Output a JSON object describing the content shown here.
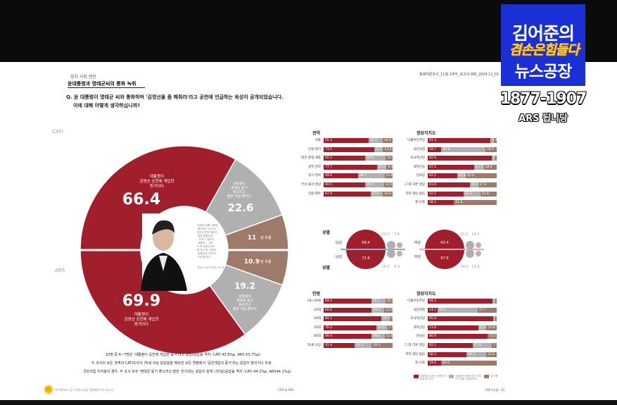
{
  "overlay": {
    "logo_line1": "김어준의",
    "logo_line2": "겸손은힘들다",
    "logo_line3": "뉴스공장",
    "phone": "1877-1907",
    "ars": "ARS 됩니당"
  },
  "report": {
    "section": "정치 사회 현안",
    "title": "윤대통령과 명태균씨의 통화 녹취",
    "question_line1": "Q. 윤 대통령이 명태균 씨와 통화하며 '김영선을 좀 해줘라'라고 공천에 언급하는 육성이 공개되었습니다.",
    "question_line2": "이에 대해 어떻게 생각하십니까?",
    "header_right": "정례여론조사_11월 1주차_보고서   WR_2024 11_01",
    "cati_label": "CATI",
    "ars_label": "ARS",
    "footnote_1": "10명 중 6~7명은 '대통령이 공천에 개입한 증거'라고 응답(응답률 격차: CATI 43.8%p, ARS 50.7%p)",
    "footnote_2": "두 조사의 모든 권역과 CATI조사의 70세 이상 응답층을 제외한 모든 연령에서 '공천개입의 증거'라는 응답이 많이거나 우세",
    "footnote_3": "국민의힘 지지층의 경우, 두 조사 모두 '명태균 등기 좋으라고 말한 것'이라는 응답이 높게 나타남(응답률 격차: CATI 44.2%p, ARS44.1%p)",
    "page_footer_left": "㈜ 여론조사 꽃 | 여론조사꽃 정례여론조사 보고서",
    "page_footer_center": "CATI & ARS",
    "page_footer_right": "여론조사꽃 · 21",
    "photo_quote": "\"김영선이를 너한테 좋으라고 내가 김영선이 번만 해주라 말은 했었는데... 그게 그 정도의 내용이... 그래도 또 김영선이가 뭐 자기 뭐 그렇게 잘했는데 그냥 여기서 좀 보다... 그래도 좀 잘해놨데\"",
    "photo_caption": "명태균 씨와의 통화 녹취 중"
  },
  "chart_data": [
    {
      "type": "pie",
      "title": "",
      "groups": [
        {
          "name": "CATI",
          "slices": [
            {
              "label": "대통령이 김영선 공천에 개입한 증거이다",
              "value": 66.4,
              "color": "#a11f2c"
            },
            {
              "label": "대통령이 명태균 듣기 좋으라고 말한 것일 뿐이다",
              "value": 22.6,
              "color": "#b0b0b0"
            },
            {
              "label": "잘 모름",
              "value": 11.0,
              "color": "#9d7a6a"
            }
          ]
        },
        {
          "name": "ARS",
          "slices": [
            {
              "label": "대통령이 김영선 공천에 개입한 증거이다",
              "value": 69.9,
              "color": "#a11f2c"
            },
            {
              "label": "대통령이 명태균 듣기 좋으라고 말한 것일 뿐이다",
              "value": 19.2,
              "color": "#b0b0b0"
            },
            {
              "label": "잘 모름",
              "value": 10.9,
              "color": "#9d7a6a"
            }
          ]
        }
      ],
      "label_short": {
        "yes": "대통령이\n김영선 공천에 개입한\n증거이다",
        "no": "대통령이\n명태균 듣기\n좋으라고\n말한 것일 뿐이다",
        "dk": "잘 모름"
      }
    },
    {
      "type": "bar",
      "stacked": true,
      "title": "권역",
      "categories": [
        "서울",
        "인천·경기",
        "대전·충청·세종",
        "광주·전라",
        "대구·경북",
        "부산·울산·경남",
        "강원·제주"
      ],
      "series": [
        {
          "values": [
            65.3,
            73.1,
            60.3,
            77.7,
            49.6,
            60.5,
            67.9
          ]
        },
        {
          "values": [
            20.2,
            13.1,
            29.6,
            13.5,
            38.7,
            26.9,
            17.6
          ]
        },
        {
          "values": [
            14.5,
            13.8,
            10.2,
            9.1,
            11.6,
            12.5,
            14.6
          ]
        }
      ]
    },
    {
      "type": "bar",
      "stacked": true,
      "title": "정당지지도",
      "categories": [
        "더불어민주당",
        "국민의힘",
        "조국혁신당",
        "개혁신당",
        "진보당",
        "그 외 다른 정당",
        "지지 정당 없음",
        "잘 모름"
      ],
      "series": [
        {
          "values": [
            91.3,
            19.7,
            92.6,
            67.5,
            42.5,
            61.6,
            52.5,
            38.2
          ]
        },
        {
          "values": [
            4.4,
            63.9,
            5.8,
            13.7,
            12.5,
            11.5,
            23.7,
            0
          ]
        },
        {
          "values": [
            4.3,
            16.5,
            1.6,
            18.8,
            45.0,
            27.0,
            23.8,
            61.8
          ]
        }
      ]
    },
    {
      "type": "pie",
      "title": "성별",
      "groups": [
        {
          "name": "남성 CATI",
          "values": [
            69.4,
            23.2,
            7.4
          ]
        },
        {
          "name": "남성 ARS",
          "values": [
            71.9,
            19.2,
            8.9
          ]
        },
        {
          "name": "여성 CATI",
          "values": [
            63.4,
            22.1,
            14.5
          ]
        },
        {
          "name": "여성 ARS",
          "values": [
            67.9,
            19.3,
            12.8
          ]
        }
      ],
      "labels": {
        "male": "남성",
        "female": "여성"
      }
    },
    {
      "type": "bar",
      "stacked": true,
      "title": "연령",
      "categories": [
        "18~29세",
        "30대",
        "40대",
        "50대",
        "60대",
        "70세 이상"
      ],
      "series": [
        {
          "values": [
            69.2,
            69.6,
            84.1,
            76.5,
            69.4,
            45.4
          ]
        },
        {
          "values": [
            20.7,
            18.4,
            11.9,
            16.0,
            19.0,
            24.3
          ]
        },
        {
          "values": [
            10.1,
            12.0,
            4.0,
            7.5,
            11.6,
            30.3
          ]
        }
      ]
    },
    {
      "type": "bar",
      "stacked": true,
      "title": "정당지지도",
      "categories": [
        "더불어민주당",
        "국민의힘",
        "조국혁신당",
        "개혁신당",
        "진보당",
        "그 외 다른 정당",
        "지지 정당 없음",
        "잘 모름"
      ],
      "series": [
        {
          "values": [
            94.2,
            14.1,
            95.0,
            73.4,
            86.9,
            65.1,
            56.3,
            19.4
          ]
        },
        {
          "values": [
            3.3,
            58.2,
            2.5,
            11.8,
            0,
            27.8,
            28.1,
            0
          ]
        },
        {
          "values": [
            2.5,
            27.7,
            2.5,
            14.8,
            13.1,
            7.1,
            15.6,
            80.6
          ]
        }
      ]
    }
  ],
  "legend": [
    "대통령이 김영선 공천에 개입한 증거이다",
    "대통령이 명태균 듣기 좋으라고 말한 것일 뿐이다",
    "잘 모름"
  ],
  "colors": {
    "yes": "#a11f2c",
    "no": "#b0b0b0",
    "dk": "#9d7a6a"
  }
}
